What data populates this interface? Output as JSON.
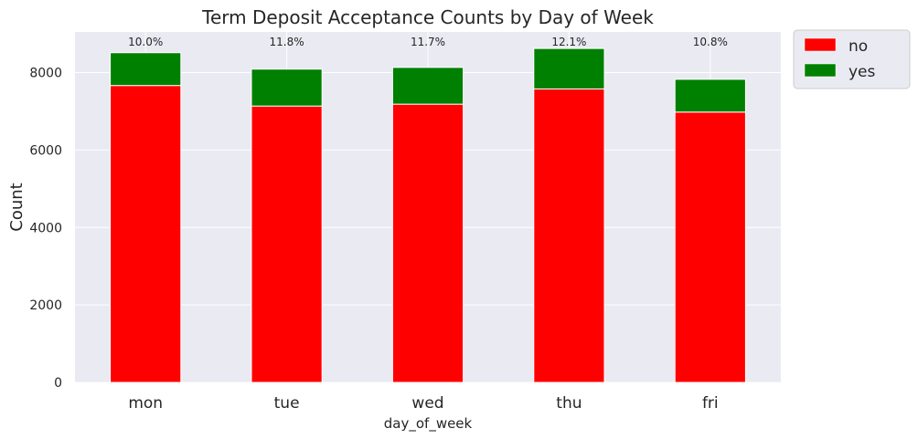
{
  "chart_data": {
    "type": "bar",
    "stacked": true,
    "title": "Term Deposit Acceptance Counts by Day of Week",
    "xlabel": "day_of_week",
    "ylabel": "Count",
    "ylim": [
      0,
      9050
    ],
    "yticks": [
      "0",
      "2000",
      "4000",
      "6000",
      "8000"
    ],
    "categories": [
      "mon",
      "tue",
      "wed",
      "thu",
      "fri"
    ],
    "series": [
      {
        "name": "no",
        "color": "#ff0000",
        "values": [
          7667,
          7137,
          7185,
          7578,
          6981
        ]
      },
      {
        "name": "yes",
        "color": "#008000",
        "values": [
          847,
          953,
          949,
          1045,
          846
        ]
      }
    ],
    "annotations": [
      "10.0%",
      "11.8%",
      "11.7%",
      "12.1%",
      "10.8%"
    ],
    "grid": true,
    "background": "#eaeaf2",
    "legend_position": "outside-top-right"
  }
}
